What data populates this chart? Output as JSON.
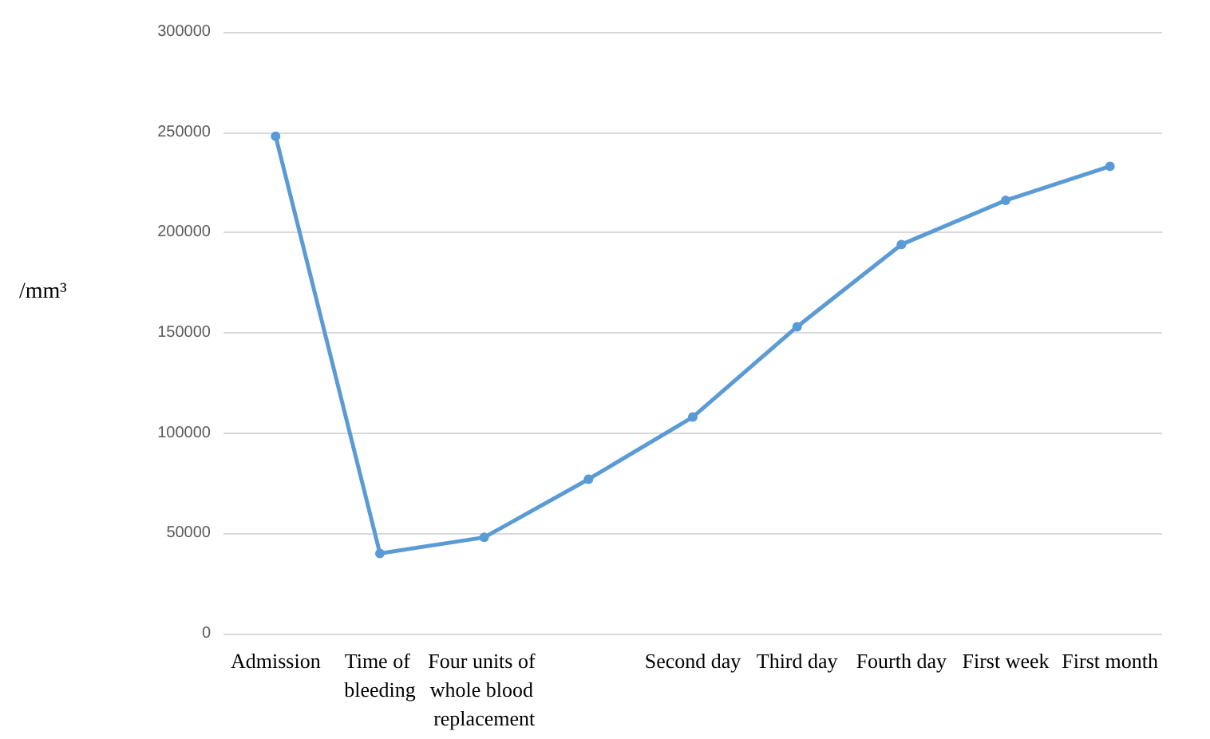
{
  "chart_data": {
    "type": "line",
    "ylabel": "/mm³",
    "categories": [
      "Admission",
      "Time of bleeding",
      "Four units of whole blood replacement",
      null,
      "Second day",
      "Third day",
      "Fourth day",
      "First week",
      "First month"
    ],
    "series": [
      {
        "color": "#5b9bd5",
        "values": [
          248000,
          40000,
          48000,
          77000,
          108000,
          153000,
          194000,
          216000,
          233000
        ]
      }
    ],
    "ylim": [
      0,
      300000
    ],
    "yticks": [
      0,
      50000,
      100000,
      150000,
      200000,
      250000,
      300000
    ],
    "grid": "y",
    "marker": "circle",
    "line_style": "solid"
  }
}
